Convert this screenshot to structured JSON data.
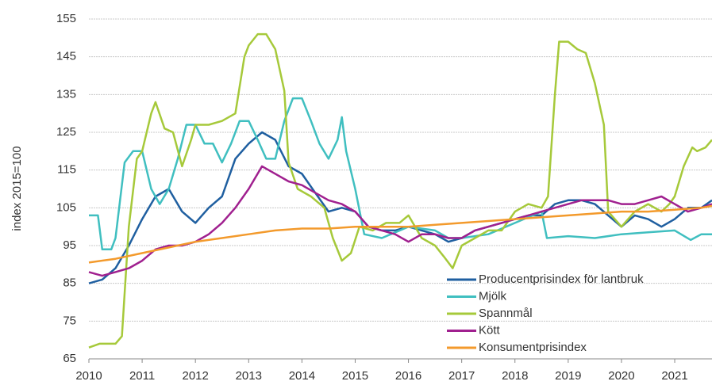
{
  "chart_data": {
    "type": "line",
    "y_label": "index 2015=100",
    "xlim": [
      2010,
      2021.7
    ],
    "xticks": [
      2010,
      2011,
      2012,
      2013,
      2014,
      2015,
      2016,
      2017,
      2018,
      2019,
      2020,
      2021
    ],
    "ylim": [
      65,
      155
    ],
    "yticks": [
      65,
      75,
      85,
      95,
      105,
      115,
      125,
      135,
      145,
      155
    ],
    "grid": true,
    "legend": "lower right",
    "series": [
      {
        "name": "Producentprisindex för lantbruk",
        "color": "#1f5fa0",
        "x": [
          2010,
          2010.25,
          2010.5,
          2010.75,
          2011,
          2011.25,
          2011.5,
          2011.75,
          2012,
          2012.25,
          2012.5,
          2012.75,
          2013,
          2013.25,
          2013.5,
          2013.75,
          2014,
          2014.25,
          2014.5,
          2014.75,
          2015,
          2015.25,
          2015.5,
          2015.75,
          2016,
          2016.25,
          2016.5,
          2016.75,
          2017,
          2017.25,
          2017.5,
          2017.75,
          2018,
          2018.25,
          2018.5,
          2018.75,
          2019,
          2019.25,
          2019.5,
          2019.75,
          2020,
          2020.25,
          2020.5,
          2020.75,
          2021,
          2021.25,
          2021.5,
          2021.7
        ],
        "values": [
          85,
          86,
          89,
          95,
          102,
          108,
          110,
          104,
          101,
          105,
          108,
          118,
          122,
          125,
          123,
          116,
          114,
          109,
          104,
          105,
          104,
          100,
          99,
          99,
          100,
          99,
          98,
          96,
          97,
          99,
          100,
          101,
          102,
          103,
          103,
          106,
          107,
          107,
          106,
          103,
          100,
          103,
          102,
          100,
          102,
          105,
          105,
          107
        ]
      },
      {
        "name": "Mjölk",
        "color": "#40bfc0",
        "x": [
          2010,
          2010.17,
          2010.25,
          2010.42,
          2010.5,
          2010.67,
          2010.83,
          2011,
          2011.17,
          2011.33,
          2011.5,
          2011.67,
          2011.83,
          2012,
          2012.17,
          2012.33,
          2012.5,
          2012.67,
          2012.83,
          2013,
          2013.17,
          2013.33,
          2013.5,
          2013.67,
          2013.83,
          2014,
          2014.17,
          2014.33,
          2014.5,
          2014.67,
          2014.75,
          2014.83,
          2015,
          2015.17,
          2015.5,
          2016,
          2016.5,
          2016.75,
          2017,
          2017.5,
          2018,
          2018.5,
          2018.6,
          2019,
          2019.5,
          2020,
          2020.5,
          2021,
          2021.3,
          2021.5,
          2021.7
        ],
        "values": [
          103,
          103,
          94,
          94,
          97,
          117,
          120,
          120,
          110,
          106,
          110,
          118,
          127,
          127,
          122,
          122,
          117,
          122,
          128,
          128,
          123,
          118,
          118,
          128,
          134,
          134,
          128,
          122,
          118,
          123,
          129,
          120,
          110,
          98,
          97,
          100,
          99,
          97,
          97,
          98,
          101,
          104,
          97,
          97.5,
          97,
          98,
          98.5,
          99,
          96.5,
          98,
          98
        ]
      },
      {
        "name": "Spannmål",
        "color": "#a6c93a",
        "x": [
          2010,
          2010.2,
          2010.5,
          2010.62,
          2010.75,
          2010.9,
          2011,
          2011.17,
          2011.25,
          2011.42,
          2011.58,
          2011.75,
          2011.92,
          2012,
          2012.25,
          2012.5,
          2012.75,
          2012.92,
          2013,
          2013.17,
          2013.33,
          2013.5,
          2013.67,
          2013.75,
          2013.92,
          2014.17,
          2014.42,
          2014.58,
          2014.75,
          2014.92,
          2015.08,
          2015.33,
          2015.58,
          2015.83,
          2016,
          2016.25,
          2016.5,
          2016.67,
          2016.83,
          2017,
          2017.25,
          2017.5,
          2017.75,
          2018,
          2018.25,
          2018.5,
          2018.62,
          2018.75,
          2018.83,
          2019,
          2019.17,
          2019.33,
          2019.5,
          2019.67,
          2019.75,
          2020,
          2020.25,
          2020.5,
          2020.75,
          2020.9,
          2021,
          2021.17,
          2021.33,
          2021.42,
          2021.58,
          2021.7
        ],
        "values": [
          68,
          69,
          69,
          71,
          100,
          118,
          120,
          130,
          133,
          126,
          125,
          116,
          123,
          127,
          127,
          128,
          130,
          145,
          148,
          151,
          151,
          147,
          136,
          117,
          110,
          108,
          105,
          97,
          91,
          93,
          100,
          99,
          101,
          101,
          103,
          97,
          95,
          92,
          89,
          95,
          97,
          99,
          99,
          104,
          106,
          105,
          108,
          135,
          149,
          149,
          147,
          146,
          138,
          127,
          104,
          100,
          104,
          106,
          104,
          106,
          108,
          116,
          121,
          120,
          121,
          123
        ]
      },
      {
        "name": "Kött",
        "color": "#a0208f",
        "x": [
          2010,
          2010.25,
          2010.5,
          2010.75,
          2011,
          2011.25,
          2011.5,
          2011.75,
          2012,
          2012.25,
          2012.5,
          2012.75,
          2013,
          2013.25,
          2013.5,
          2013.75,
          2014,
          2014.25,
          2014.5,
          2014.75,
          2015,
          2015.25,
          2015.5,
          2015.75,
          2016,
          2016.25,
          2016.5,
          2016.75,
          2017,
          2017.25,
          2017.5,
          2017.75,
          2018,
          2018.25,
          2018.5,
          2018.75,
          2019,
          2019.25,
          2019.5,
          2019.75,
          2020,
          2020.25,
          2020.5,
          2020.75,
          2021,
          2021.25,
          2021.5,
          2021.7
        ],
        "values": [
          88,
          87,
          88,
          89,
          91,
          94,
          95,
          95,
          96,
          98,
          101,
          105,
          110,
          116,
          114,
          112,
          111,
          109,
          107,
          106,
          104,
          100,
          99,
          98,
          96,
          98,
          98,
          97,
          97,
          99,
          100,
          101,
          102,
          103,
          104,
          105,
          106,
          107,
          107,
          107,
          106,
          106,
          107,
          108,
          106,
          104,
          105,
          106
        ]
      },
      {
        "name": "Konsumentprisindex",
        "color": "#f39a2c",
        "x": [
          2010,
          2010.5,
          2011,
          2011.5,
          2012,
          2012.5,
          2013,
          2013.5,
          2014,
          2014.5,
          2015,
          2015.5,
          2016,
          2016.5,
          2017,
          2017.5,
          2018,
          2018.5,
          2019,
          2019.5,
          2020,
          2020.5,
          2021,
          2021.5,
          2021.7
        ],
        "values": [
          90.5,
          91.5,
          93,
          94.5,
          96,
          97,
          98,
          99,
          99.5,
          99.5,
          100,
          100,
          100,
          100.5,
          101,
          101.5,
          102,
          102.5,
          103,
          103.5,
          104,
          104,
          104.5,
          105,
          105.5
        ]
      }
    ]
  }
}
